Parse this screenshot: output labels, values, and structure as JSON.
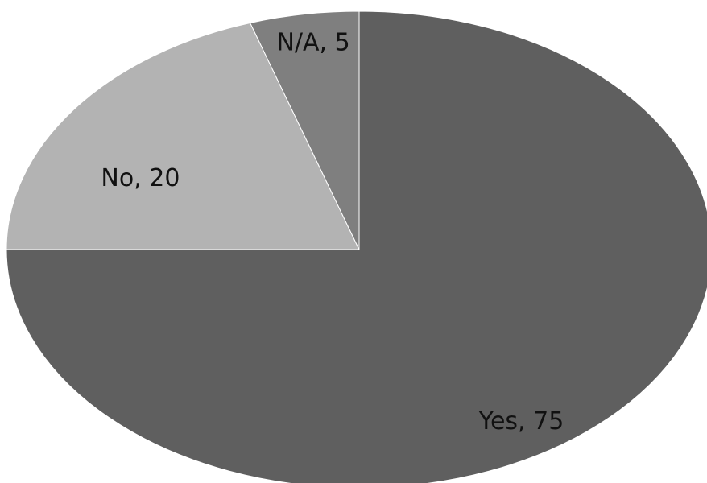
{
  "chart_data": {
    "type": "pie",
    "slices": [
      {
        "label": "Yes",
        "value": 75,
        "text": "Yes, 75",
        "color": "#5f5f5f"
      },
      {
        "label": "No",
        "value": 20,
        "text": "No, 20",
        "color": "#b3b3b3"
      },
      {
        "label": "N/A",
        "value": 5,
        "text": "N/A, 5",
        "color": "#7f7f7f"
      }
    ],
    "start_angle": "12 o'clock",
    "direction": "clockwise",
    "legend": "none",
    "title": ""
  }
}
